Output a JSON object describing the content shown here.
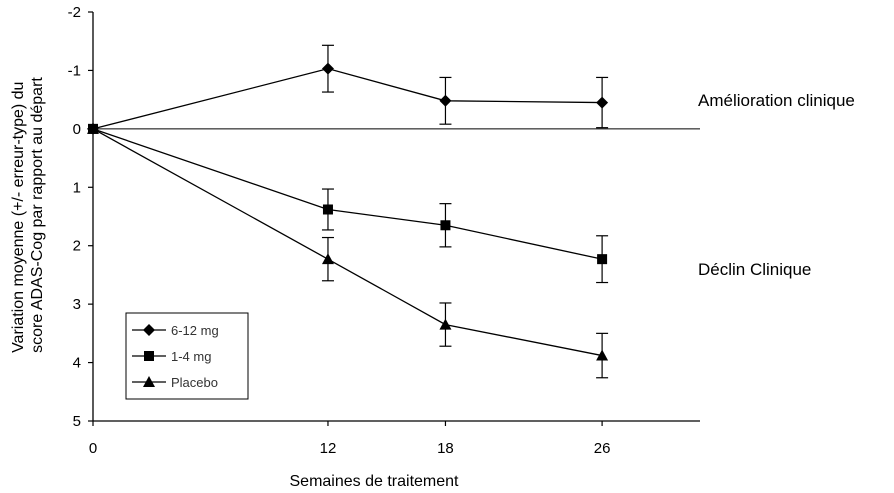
{
  "chart_data": {
    "type": "line",
    "title": "",
    "xlabel": "Semaines de traitement",
    "ylabel_lines": [
      "Variation moyenne (+/- erreur-type) du",
      "score ADAS-Cog par rapport au départ"
    ],
    "x": [
      0,
      12,
      18,
      26
    ],
    "x_tick_labels": [
      "0",
      "12",
      "18",
      "26"
    ],
    "xlim": [
      0,
      31
    ],
    "ylim": [
      -2,
      5
    ],
    "y_inverted": true,
    "y_ticks": [
      -2,
      -1,
      0,
      1,
      2,
      3,
      4,
      5
    ],
    "y_tick_labels": [
      "-2",
      "-1",
      "0",
      "1",
      "2",
      "3",
      "4",
      "5"
    ],
    "grid": false,
    "reference_line_y": 0,
    "legend_position": "bottom-left",
    "series": [
      {
        "name": "6-12 mg",
        "marker": "diamond",
        "values": [
          0,
          -1.03,
          -0.48,
          -0.45
        ],
        "errors": [
          0,
          0.4,
          0.4,
          0.43
        ]
      },
      {
        "name": "1-4 mg",
        "marker": "square",
        "values": [
          0,
          1.38,
          1.65,
          2.23
        ],
        "errors": [
          0,
          0.35,
          0.37,
          0.4
        ]
      },
      {
        "name": "Placebo",
        "marker": "triangle",
        "values": [
          0,
          2.23,
          3.35,
          3.88
        ],
        "errors": [
          0,
          0.37,
          0.37,
          0.38
        ]
      }
    ],
    "annotations": [
      "Amélioration clinique",
      "Déclin Clinique"
    ]
  }
}
